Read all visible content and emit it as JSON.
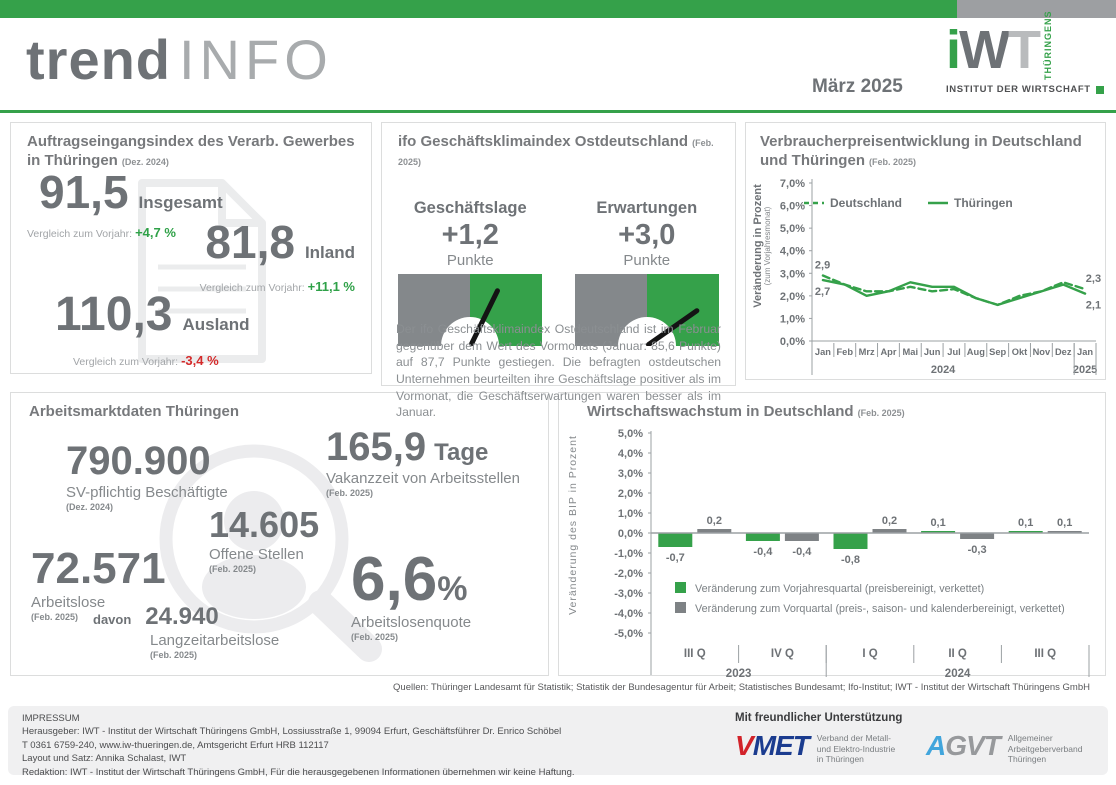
{
  "colors": {
    "brand_green": "#35a14a",
    "accent_red": "#d42a2a",
    "dark_gray": "#6e7276",
    "medium_gray": "#85898c",
    "light_gray": "#a8abad",
    "topbar_gray": "#9d9fa2",
    "gauge_gray": "#84888b",
    "bar_gray": "#7e8285"
  },
  "header": {
    "brand_bold": "trend",
    "brand_light": "INFO",
    "issue_date": "März 2025",
    "logo": {
      "letter_i": "i",
      "letter_w": "W",
      "letter_t": "T",
      "vertical": "THÜRINGENS",
      "institute": "INSTITUT DER WIRTSCHAFT"
    }
  },
  "panels": {
    "orders": {
      "title_line1": "Auftragseingangsindex des Verarb. Gewerbes",
      "title_line2": "in Thüringen",
      "period": "(Dez. 2024)",
      "stats": [
        {
          "value": "91,5",
          "label": "Insgesamt",
          "compare_label": "Vergleich zum Vorjahr:",
          "compare_value": "+4,7 %",
          "trend": "positive"
        },
        {
          "value": "81,8",
          "label": "Inland",
          "compare_label": "Vergleich zum Vorjahr:",
          "compare_value": "+11,1 %",
          "trend": "positive"
        },
        {
          "value": "110,3",
          "label": "Ausland",
          "compare_label": "Vergleich zum Vorjahr:",
          "compare_value": "-3,4 %",
          "trend": "negative"
        }
      ]
    },
    "ifo": {
      "title": "ifo Geschäftsklimaindex Ostdeutschland",
      "period": "(Feb. 2025)",
      "gauges": [
        {
          "label": "Geschäftslage",
          "value": "+1,2",
          "unit": "Punkte",
          "needle_deg": 26
        },
        {
          "label": "Erwartungen",
          "value": "+3,0",
          "unit": "Punkte",
          "needle_deg": 55
        }
      ],
      "body": "Der ifo Geschäftsklimaindex Ostdeutschland ist im Februar gegenüber dem Wert des Vormonats (Januar: 85,6 Punkte) auf 87,7 Punkte gestiegen. Die befragten ostdeutschen Unternehmen beurteilten ihre Geschäftslage positiver als im Vormonat, die Geschäftserwartungen waren besser als im Januar."
    },
    "labor": {
      "title": "Arbeitsmarktdaten Thüringen",
      "employed": {
        "value": "790.900",
        "label": "SV-pflichtig Beschäftigte",
        "period": "(Dez. 2024)"
      },
      "vacancy": {
        "value": "165,9",
        "suffix": "Tage",
        "label": "Vakanzzeit von Arbeitsstellen",
        "period": "(Feb. 2025)"
      },
      "open": {
        "value": "14.605",
        "label": "Offene Stellen",
        "period": "(Feb. 2025)"
      },
      "unemployed": {
        "value": "72.571",
        "label": "Arbeitslose",
        "period": "(Feb. 2025)"
      },
      "longterm": {
        "prefix": "davon",
        "value": "24.940",
        "label": "Langzeitarbeitslose",
        "period": "(Feb. 2025)"
      },
      "rate": {
        "value": "6,6",
        "suffix": "%",
        "label": "Arbeitslosenquote",
        "period": "(Feb. 2025)"
      }
    }
  },
  "chart_data": [
    {
      "id": "vpi",
      "type": "line",
      "title": "Verbraucherpreisentwicklung in Deutschland und Thüringen",
      "title_line1": "Verbraucherpreisentwicklung in Deutschland",
      "title_line2": "und Thüringen",
      "period": "(Feb. 2025)",
      "ylabel": "Veränderung in Prozent",
      "ylabel_sub": "(zum Vorjahresmonat)",
      "ylim": [
        0,
        7
      ],
      "yticks": [
        "0,0%",
        "1,0%",
        "2,0%",
        "3,0%",
        "4,0%",
        "5,0%",
        "6,0%",
        "7,0%"
      ],
      "categories": [
        "Jan",
        "Feb",
        "Mrz",
        "Apr",
        "Mai",
        "Jun",
        "Jul",
        "Aug",
        "Sep",
        "Okt",
        "Nov",
        "Dez",
        "Jan"
      ],
      "year_labels": [
        {
          "label": "2024",
          "from": 0,
          "to": 11
        },
        {
          "label": "2025",
          "from": 12,
          "to": 12
        }
      ],
      "legend_position": "top-left-inside",
      "series": [
        {
          "name": "Deutschland",
          "style": "dashed",
          "color": "#35a14a",
          "values": [
            2.9,
            2.5,
            2.2,
            2.2,
            2.4,
            2.2,
            2.3,
            1.9,
            1.6,
            2.0,
            2.2,
            2.6,
            2.3
          ]
        },
        {
          "name": "Thüringen",
          "style": "solid",
          "color": "#35a14a",
          "values": [
            2.7,
            2.5,
            2.0,
            2.2,
            2.6,
            2.4,
            2.4,
            1.9,
            1.6,
            1.9,
            2.2,
            2.5,
            2.1
          ]
        }
      ],
      "annotations": [
        {
          "text": "2,9",
          "series": 0,
          "index": 0,
          "position": "above"
        },
        {
          "text": "2,7",
          "series": 1,
          "index": 0,
          "position": "below"
        },
        {
          "text": "2,3",
          "series": 0,
          "index": 12,
          "position": "above"
        },
        {
          "text": "2,1",
          "series": 1,
          "index": 12,
          "position": "below"
        }
      ]
    },
    {
      "id": "bip",
      "type": "bar",
      "title": "Wirtschaftswachstum in Deutschland",
      "period": "(Feb. 2025)",
      "ylabel": "Veränderung des BIP in Prozent",
      "ylim": [
        -5,
        5
      ],
      "yticks": [
        "5,0%",
        "4,0%",
        "3,0%",
        "2,0%",
        "1,0%",
        "0,0%",
        "-1,0%",
        "-2,0%",
        "-3,0%",
        "-4,0%",
        "-5,0%"
      ],
      "categories": [
        "III Q",
        "IV Q",
        "I Q",
        "II Q",
        "III Q"
      ],
      "year_labels": [
        {
          "label": "2023",
          "from": 0,
          "to": 1
        },
        {
          "label": "2024",
          "from": 2,
          "to": 4
        }
      ],
      "legend_position": "bottom-left-inside",
      "series": [
        {
          "name": "Veränderung zum Vorjahresquartal (preisbereinigt, verkettet)",
          "color": "#35a14a",
          "values": [
            -0.7,
            -0.4,
            -0.8,
            0.1,
            0.1
          ],
          "labels": [
            "-0,7",
            "-0,4",
            "-0,8",
            "0,1",
            "0,1"
          ]
        },
        {
          "name": "Veränderung zum Vorquartal (preis-, saison- und kalenderbereinigt, verkettet)",
          "color": "#7e8285",
          "values": [
            0.2,
            -0.4,
            0.2,
            -0.3,
            0.1
          ],
          "labels": [
            "0,2",
            "-0,4",
            "0,2",
            "-0,3",
            "0,1"
          ]
        }
      ]
    }
  ],
  "sources": "Quellen: Thüringer Landesamt für Statistik; Statistik der Bundesagentur für Arbeit; Statistisches Bundesamt; Ifo-Institut; IWT - Institut der Wirtschaft Thüringens GmbH",
  "footer": {
    "impressum": "IMPRESSUM\nHerausgeber: IWT - Institut der Wirtschaft Thüringens GmbH, Lossiusstraße 1, 99094 Erfurt, Geschäftsführer Dr. Enrico Schöbel\nT 0361 6759-240, www.iw-thueringen.de, Amtsgericht Erfurt HRB 112117\nLayout und Satz: Annika Schalast, IWT\nRedaktion: IWT - Institut der Wirtschaft Thüringens GmbH, Für die herausgegebenen Informationen übernehmen wir keine Haftung.",
    "support_title": "Mit freundlicher Unterstützung",
    "vmet": {
      "mark_1": "V",
      "mark_2": "MET",
      "label": "Verband der Metall-\nund Elektro-Industrie\nin Thüringen"
    },
    "agvt": {
      "mark_1": "A",
      "mark_2": "GVT",
      "label": "Allgemeiner\nArbeitgeberverband\nThüringen"
    }
  }
}
